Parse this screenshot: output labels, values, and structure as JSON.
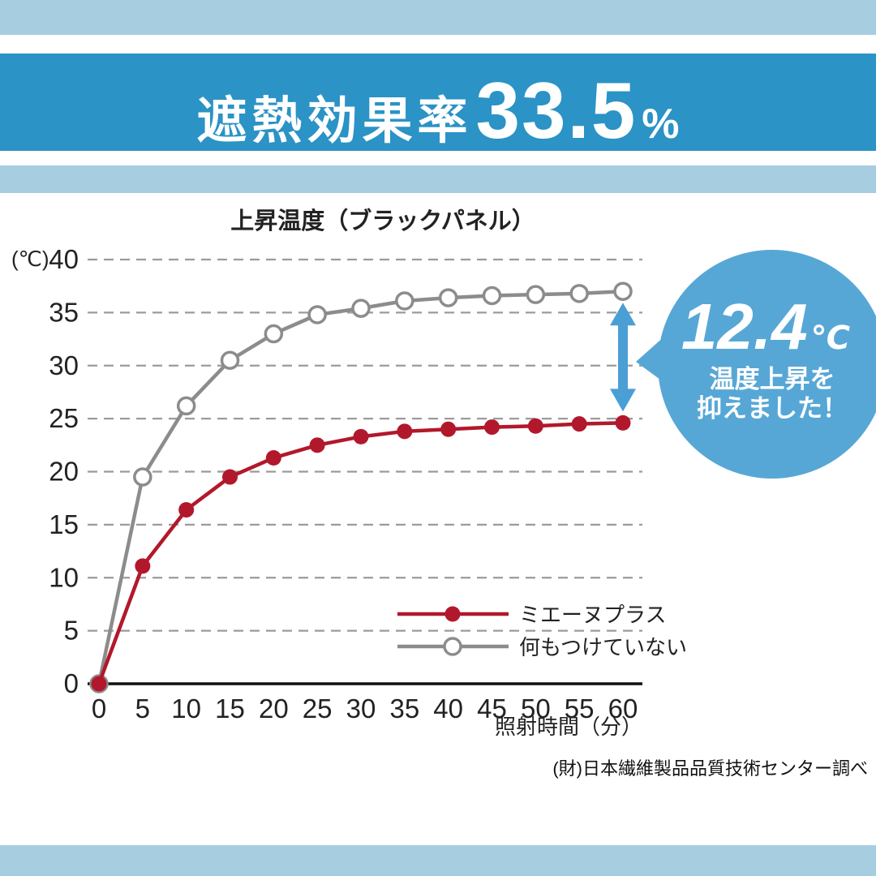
{
  "banner": {
    "title_prefix": "遮熱効果率",
    "title_value": "33.5",
    "title_suffix": "%"
  },
  "chart_data": {
    "type": "line",
    "title": "上昇温度（ブラックパネル）",
    "y_unit": "(℃)",
    "xlabel": "照射時間（分）",
    "x": [
      0,
      5,
      10,
      15,
      20,
      25,
      30,
      35,
      40,
      45,
      50,
      55,
      60
    ],
    "ylim": [
      0,
      40
    ],
    "ytick_step": 5,
    "grid": true,
    "legend_position": "inside-bottom-right",
    "series": [
      {
        "name": "ミエーヌプラス",
        "color": "#b2182b",
        "marker": "filled",
        "values": [
          0,
          11.1,
          16.4,
          19.5,
          21.3,
          22.5,
          23.3,
          23.8,
          24.0,
          24.2,
          24.3,
          24.5,
          24.6
        ]
      },
      {
        "name": "何もつけていない",
        "color": "#8c8c8c",
        "marker": "open",
        "values": [
          0,
          19.5,
          26.2,
          30.5,
          33.0,
          34.8,
          35.4,
          36.1,
          36.4,
          36.6,
          36.7,
          36.8,
          37.0
        ]
      }
    ],
    "annotation": {
      "difference_at_x60": "12.4℃"
    }
  },
  "callout": {
    "value": "12.4",
    "unit": "℃",
    "line1": "温度上昇を",
    "line2": "抑えました！"
  },
  "source": "(財)日本繊維製品品質技術センター調べ",
  "colors": {
    "banner": "#2b93c5",
    "stripe": "#a7cde1",
    "bubble": "#57a7d6",
    "arrow": "#4a9fd4",
    "red": "#b2182b",
    "gray": "#8c8c8c"
  }
}
